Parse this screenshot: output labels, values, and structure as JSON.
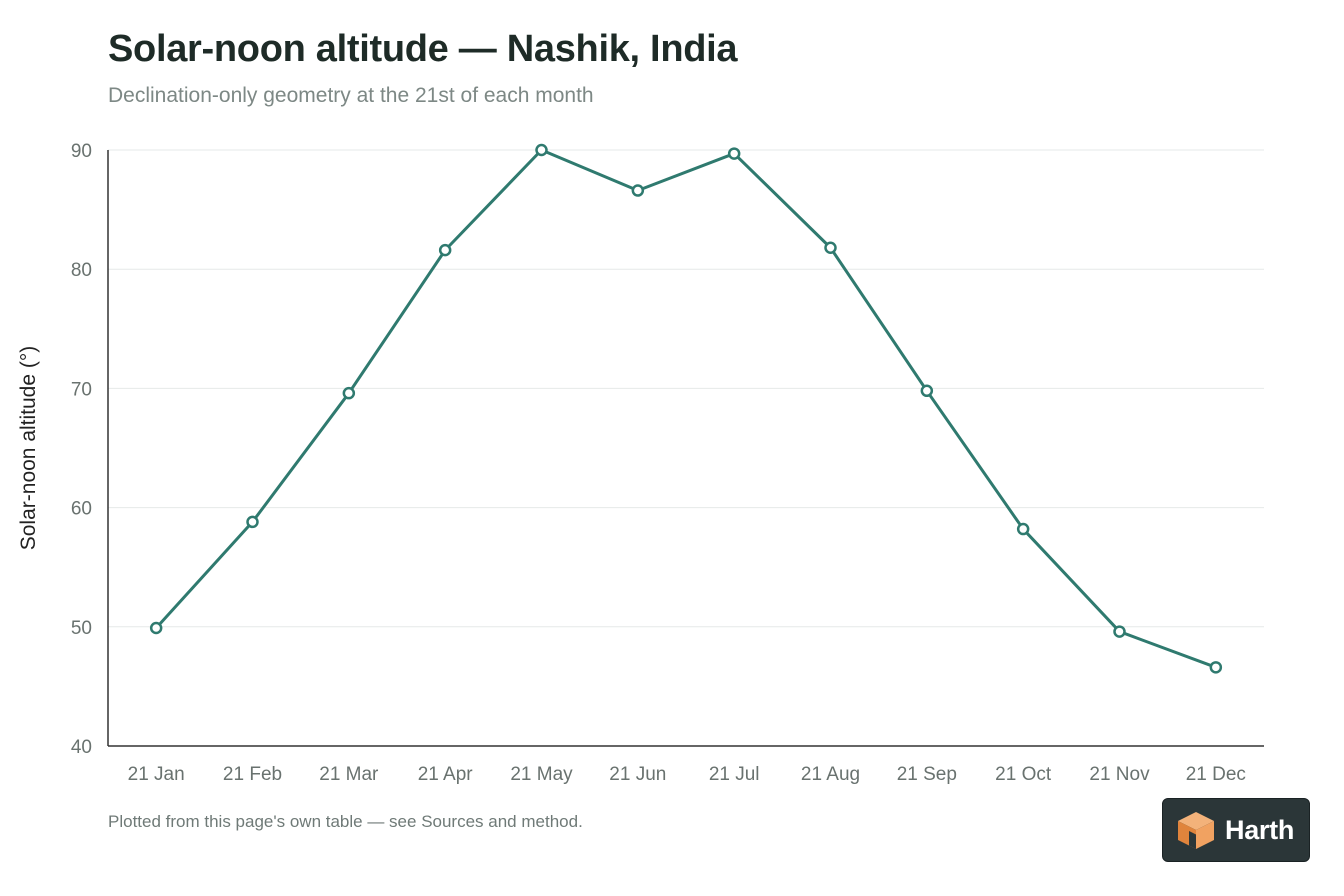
{
  "header": {
    "title": "Solar-noon altitude — Nashik, India",
    "subtitle": "Declination-only geometry at the 21st of each month"
  },
  "footer": {
    "note": "Plotted from this page's own table — see Sources and method."
  },
  "brand": {
    "name": "Harth",
    "logo_icon": "cube-icon",
    "colors": {
      "background": "#2b3638",
      "logo_light": "#f3b27a",
      "logo_dark": "#e0843c"
    }
  },
  "chart_data": {
    "type": "line",
    "title": "Solar-noon altitude — Nashik, India",
    "subtitle": "Declination-only geometry at the 21st of each month",
    "xlabel": "",
    "ylabel": "Solar-noon altitude (°)",
    "categories": [
      "21 Jan",
      "21 Feb",
      "21 Mar",
      "21 Apr",
      "21 May",
      "21 Jun",
      "21 Jul",
      "21 Aug",
      "21 Sep",
      "21 Oct",
      "21 Nov",
      "21 Dec"
    ],
    "series": [
      {
        "values": [
          49.9,
          58.8,
          69.6,
          81.6,
          90.0,
          86.6,
          89.7,
          81.8,
          69.8,
          58.2,
          49.6,
          46.6
        ]
      }
    ],
    "ylim": [
      40,
      90
    ],
    "yticks": [
      40,
      50,
      60,
      70,
      80,
      90
    ],
    "grid": true,
    "legend": "none",
    "colors": {
      "line": "#2f7a6f",
      "grid": "#e6e9e8",
      "axis": "#333333"
    }
  }
}
